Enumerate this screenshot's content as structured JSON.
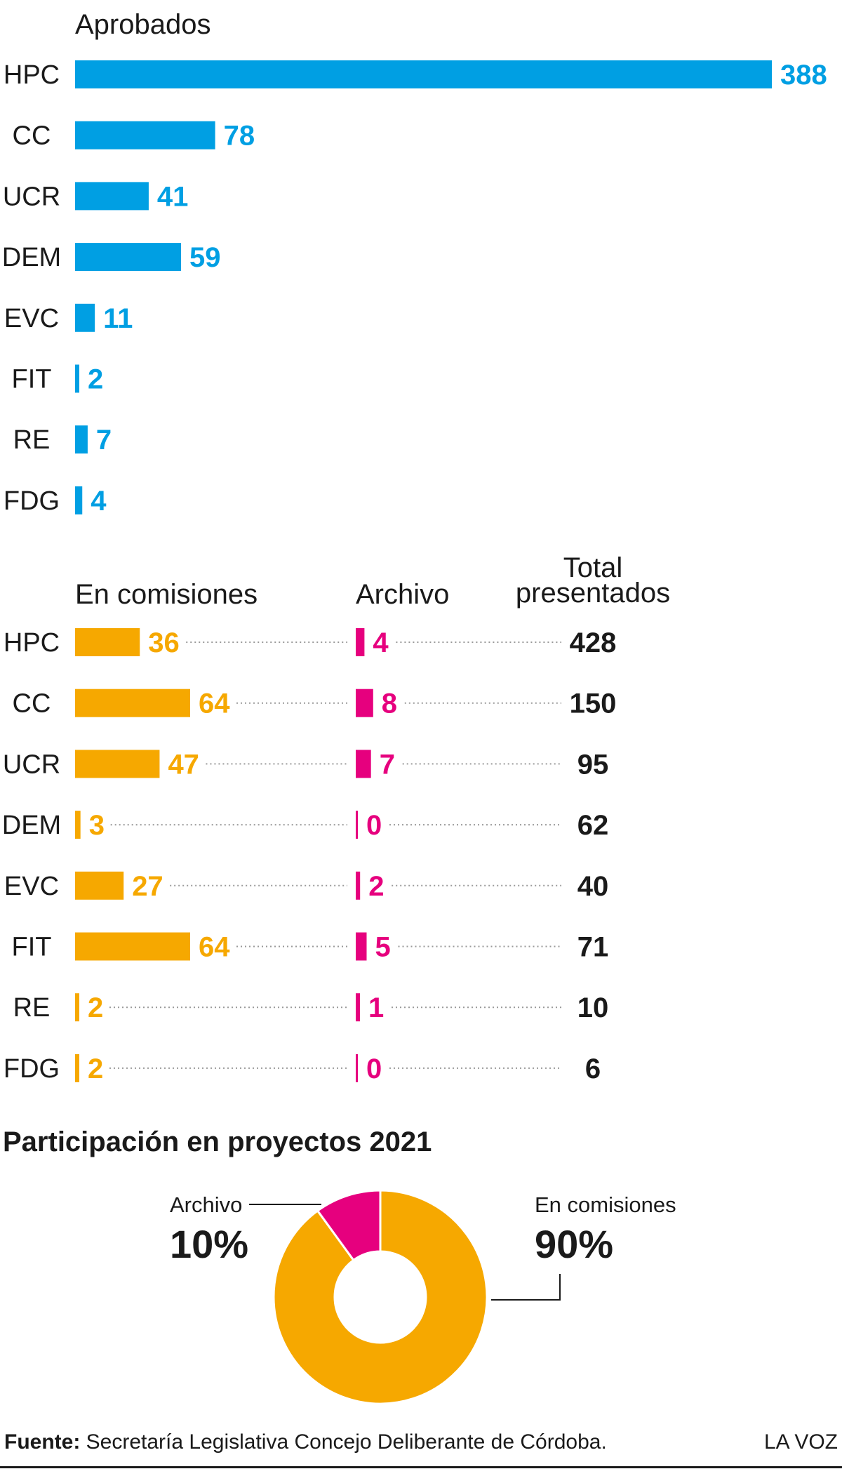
{
  "colors": {
    "aprobados": "#009fe3",
    "comisiones": "#f6a800",
    "archivo": "#e6007e",
    "text": "#1a1a1a"
  },
  "chart_data": [
    {
      "type": "bar",
      "orientation": "horizontal",
      "title": "Aprobados",
      "categories": [
        "HPC",
        "CC",
        "UCR",
        "DEM",
        "EVC",
        "FIT",
        "RE",
        "FDG"
      ],
      "values": [
        388,
        78,
        41,
        59,
        11,
        2,
        7,
        4
      ]
    },
    {
      "type": "bar",
      "orientation": "horizontal",
      "categories": [
        "HPC",
        "CC",
        "UCR",
        "DEM",
        "EVC",
        "FIT",
        "RE",
        "FDG"
      ],
      "series": [
        {
          "name": "En comisiones",
          "values": [
            36,
            64,
            47,
            3,
            27,
            64,
            2,
            2
          ]
        },
        {
          "name": "Archivo",
          "values": [
            4,
            8,
            7,
            0,
            2,
            5,
            1,
            0
          ]
        }
      ],
      "totals_label": [
        "Total",
        "presentados"
      ],
      "totals": [
        428,
        150,
        95,
        62,
        40,
        71,
        10,
        6
      ]
    },
    {
      "type": "pie",
      "title": "Participación en proyectos 2021",
      "labels": [
        "En comisiones",
        "Archivo"
      ],
      "values": [
        90,
        10
      ],
      "value_labels": [
        "90%",
        "10%"
      ]
    }
  ],
  "footer": {
    "source_label": "Fuente:",
    "source_text": "Secretaría Legislativa Concejo Deliberante de Córdoba.",
    "brand": "LA VOZ"
  }
}
